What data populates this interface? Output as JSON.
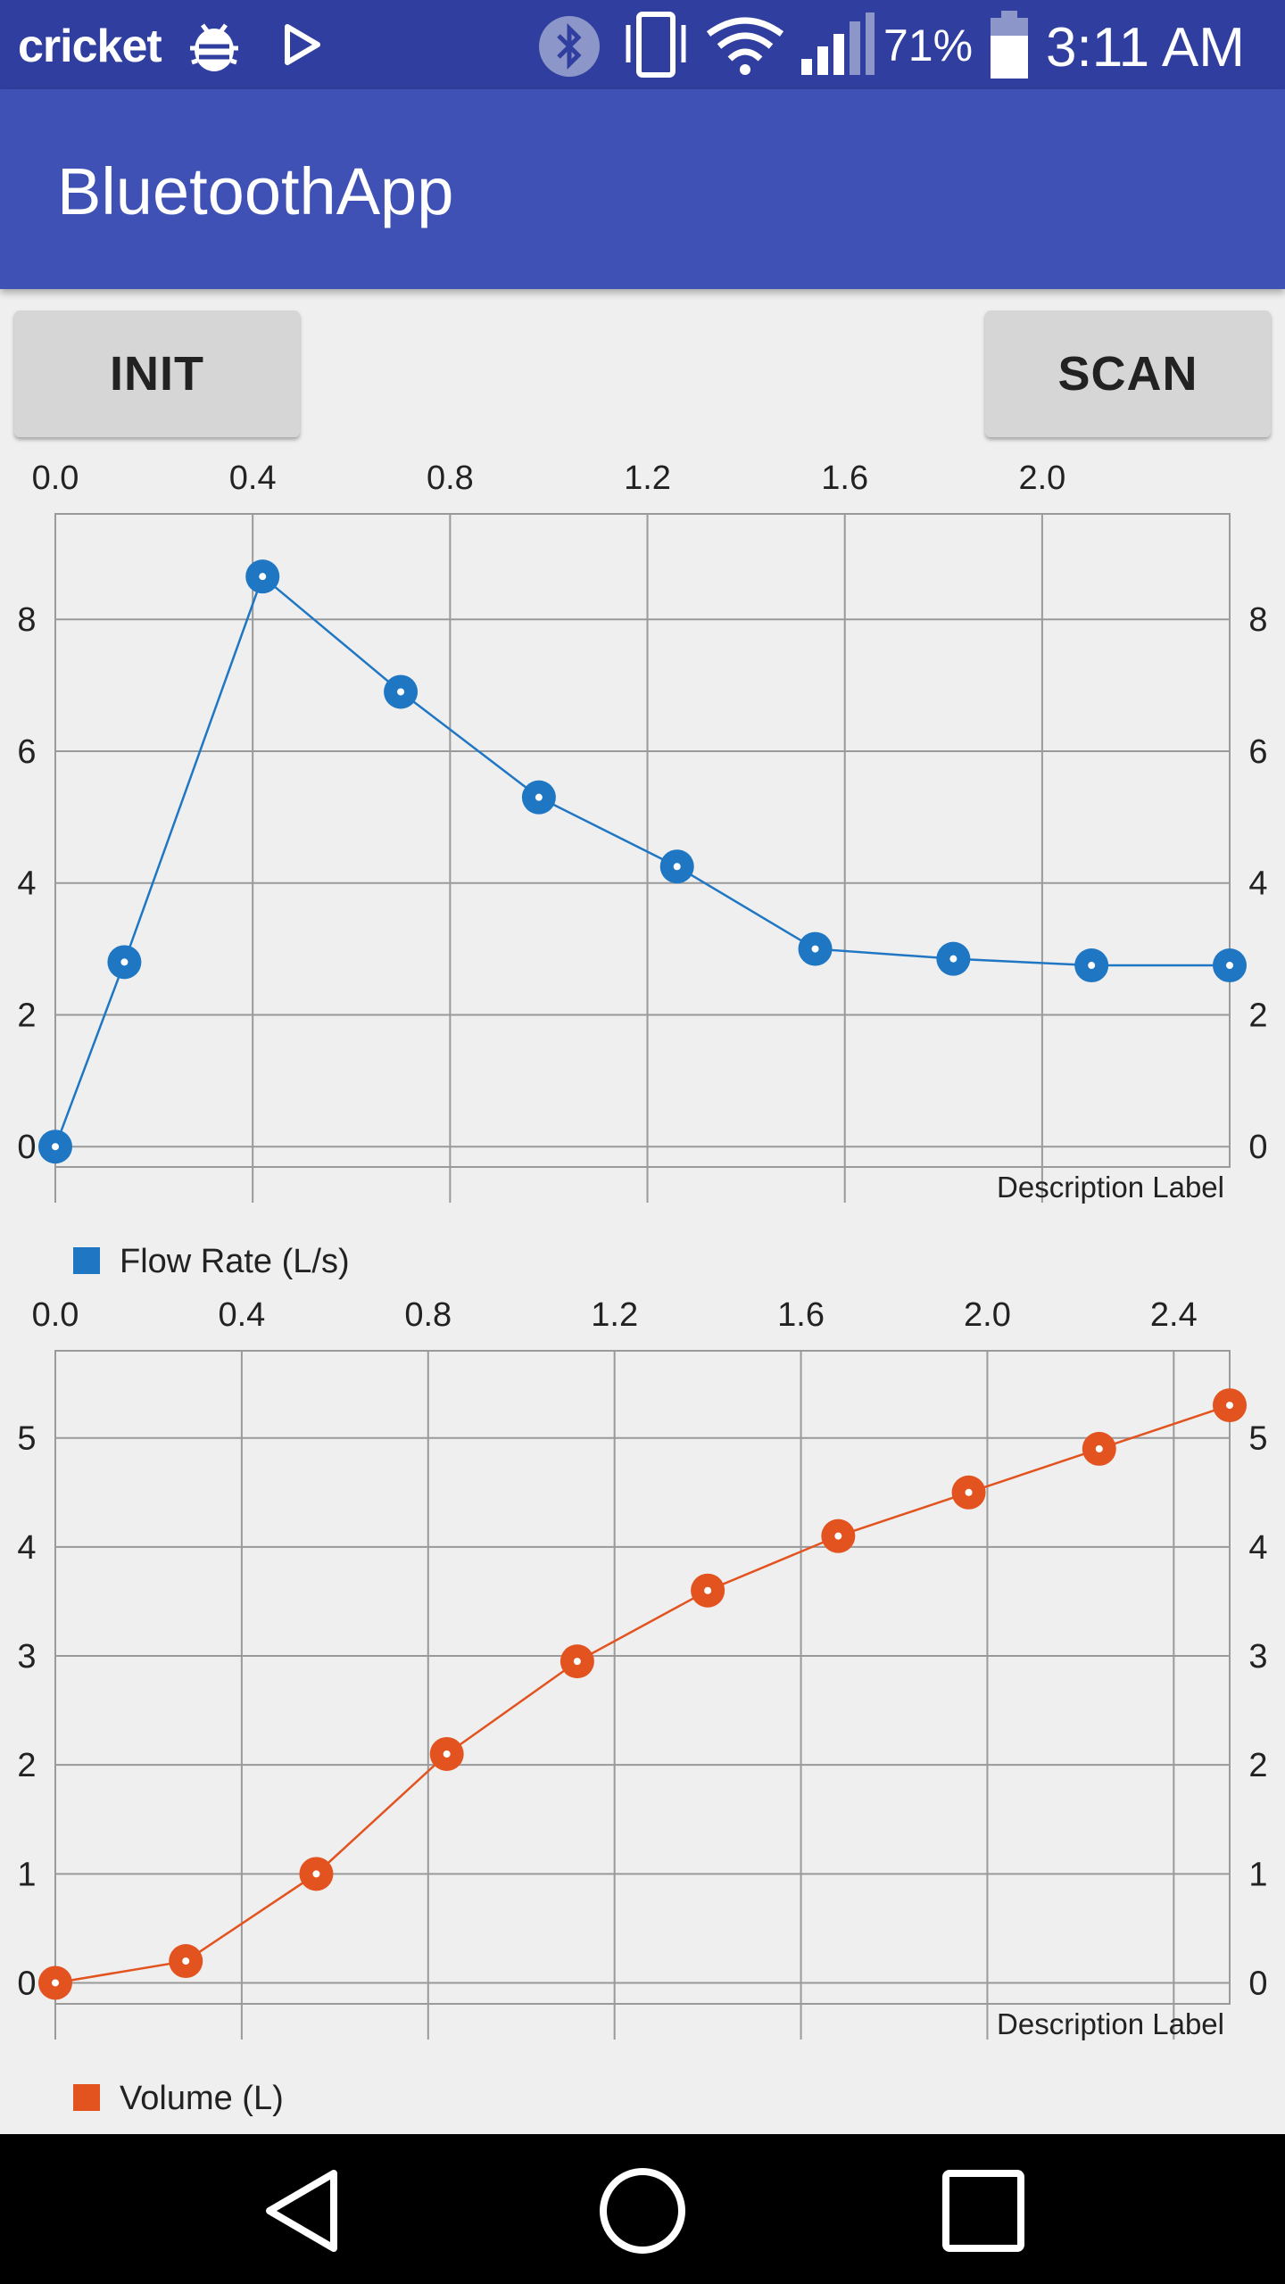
{
  "status_bar": {
    "carrier": "cricket",
    "battery_percent": "71%",
    "time": "3:11 AM",
    "icons": [
      "bug-icon",
      "play-store-icon",
      "bluetooth-icon",
      "vibrate-icon",
      "wifi-icon",
      "signal-icon",
      "battery-icon"
    ]
  },
  "app_bar": {
    "title": "BluetoothApp"
  },
  "buttons": {
    "init_label": "INIT",
    "scan_label": "SCAN"
  },
  "charts": [
    {
      "description": "Description Label",
      "legend": "Flow Rate (L/s)"
    },
    {
      "description": "Description Label",
      "legend": "Volume (L)"
    }
  ],
  "chart_data": [
    {
      "type": "line",
      "x_ticks": [
        "0.0",
        "0.4",
        "0.8",
        "1.2",
        "1.6",
        "2.0"
      ],
      "y_ticks": [
        "0",
        "2",
        "4",
        "6",
        "8"
      ],
      "xlim": [
        0.0,
        2.38
      ],
      "ylim": [
        -0.85,
        9.6
      ],
      "series": [
        {
          "name": "Flow Rate (L/s)",
          "color": "#1f77c4",
          "x": [
            0.0,
            0.14,
            0.42,
            0.7,
            0.98,
            1.26,
            1.54,
            1.82,
            2.1,
            2.38
          ],
          "y": [
            0.0,
            2.8,
            8.65,
            6.9,
            5.3,
            4.25,
            3.0,
            2.85,
            2.75,
            2.75
          ]
        }
      ],
      "grid": true,
      "description": "Description Label",
      "legend_position": "bottom-left"
    },
    {
      "type": "line",
      "x_ticks": [
        "0.0",
        "0.4",
        "0.8",
        "1.2",
        "1.6",
        "2.0",
        "2.4"
      ],
      "y_ticks": [
        "0",
        "1",
        "2",
        "3",
        "4",
        "5"
      ],
      "xlim": [
        0.0,
        2.52
      ],
      "ylim": [
        -0.52,
        5.8
      ],
      "series": [
        {
          "name": "Volume (L)",
          "color": "#e2531f",
          "x": [
            0.0,
            0.28,
            0.56,
            0.84,
            1.12,
            1.4,
            1.68,
            1.96,
            2.24,
            2.52
          ],
          "y": [
            0.0,
            0.2,
            1.0,
            2.1,
            2.95,
            3.6,
            4.1,
            4.5,
            4.9,
            5.3
          ]
        }
      ],
      "grid": true,
      "description": "Description Label",
      "legend_position": "bottom-left"
    }
  ]
}
